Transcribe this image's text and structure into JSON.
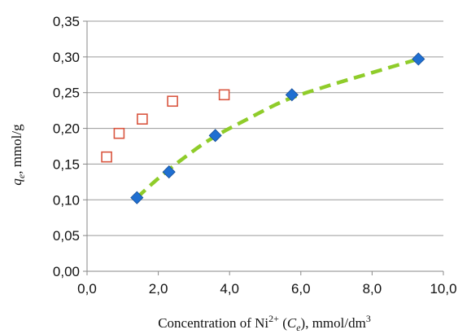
{
  "chart_data": {
    "type": "scatter",
    "ylabel_parts": {
      "var": "q",
      "sub": "e",
      "rest": ", mmol/g"
    },
    "xlabel_parts": {
      "pre": "Concentration of  Ni",
      "sup": "2+",
      "mid1": " (",
      "var": "C",
      "sub": "e",
      "mid2": "), mmol/dm",
      "sup2": "3"
    },
    "xlim": [
      0,
      10
    ],
    "ylim": [
      0,
      0.35
    ],
    "x_ticks": [
      0,
      2,
      4,
      6,
      8,
      10
    ],
    "x_tick_labels": [
      "0,0",
      "2,0",
      "4,0",
      "6,0",
      "8,0",
      "10,0"
    ],
    "y_ticks": [
      0,
      0.05,
      0.1,
      0.15,
      0.2,
      0.25,
      0.3,
      0.35
    ],
    "y_tick_labels": [
      "0,00",
      "0,05",
      "0,10",
      "0,15",
      "0,20",
      "0,25",
      "0,30",
      "0,35"
    ],
    "grid": "horizontal",
    "series": [
      {
        "marker": "square-open",
        "color": "#d9553f",
        "points": [
          {
            "x": 0.55,
            "y": 0.16
          },
          {
            "x": 0.9,
            "y": 0.193
          },
          {
            "x": 1.55,
            "y": 0.213
          },
          {
            "x": 2.4,
            "y": 0.238
          },
          {
            "x": 3.85,
            "y": 0.247
          }
        ]
      },
      {
        "marker": "diamond-filled",
        "color": "#1f6fd1",
        "points": [
          {
            "x": 1.4,
            "y": 0.103
          },
          {
            "x": 2.3,
            "y": 0.139
          },
          {
            "x": 3.6,
            "y": 0.19
          },
          {
            "x": 5.75,
            "y": 0.247
          },
          {
            "x": 9.3,
            "y": 0.297
          }
        ]
      }
    ],
    "fit_curve": {
      "style": "dashed",
      "color": "#8fcc2a",
      "points": [
        {
          "x": 1.4,
          "y": 0.103
        },
        {
          "x": 2.0,
          "y": 0.13
        },
        {
          "x": 2.7,
          "y": 0.158
        },
        {
          "x": 3.5,
          "y": 0.186
        },
        {
          "x": 4.5,
          "y": 0.213
        },
        {
          "x": 5.6,
          "y": 0.24
        },
        {
          "x": 6.8,
          "y": 0.26
        },
        {
          "x": 8.0,
          "y": 0.278
        },
        {
          "x": 9.3,
          "y": 0.297
        }
      ]
    }
  }
}
